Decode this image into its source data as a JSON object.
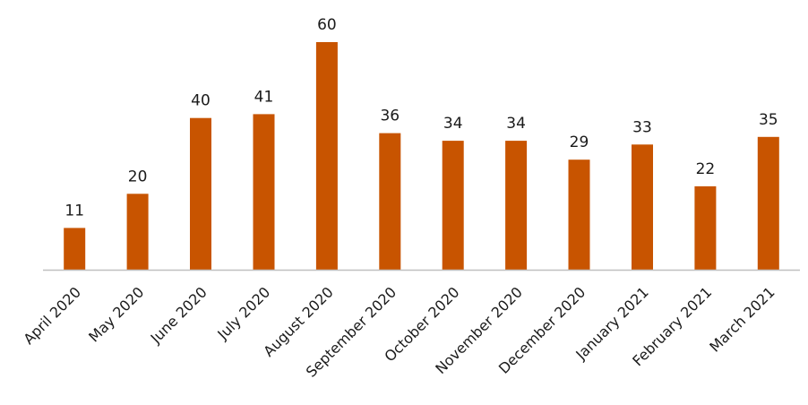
{
  "chart_data": {
    "type": "bar",
    "categories": [
      "April 2020",
      "May 2020",
      "June 2020",
      "July 2020",
      "August 2020",
      "September 2020",
      "October 2020",
      "November 2020",
      "December 2020",
      "January 2021",
      "February 2021",
      "March 2021"
    ],
    "values": [
      11,
      20,
      40,
      41,
      60,
      36,
      34,
      34,
      29,
      33,
      22,
      35
    ],
    "title": "",
    "xlabel": "",
    "ylabel": "",
    "ylim": [
      0,
      60
    ],
    "grid": false,
    "legend": "none",
    "data_labels": true,
    "bar_color": "#c85400",
    "axis_color": "#c0c0c0"
  }
}
